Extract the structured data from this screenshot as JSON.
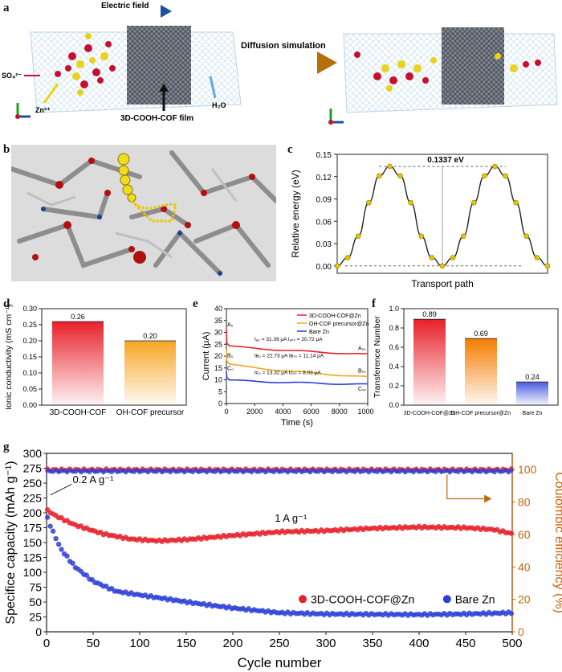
{
  "panels": {
    "a": "a",
    "b": "b",
    "c": "c",
    "d": "d",
    "e": "e",
    "f": "f",
    "g": "g"
  },
  "panel_a": {
    "electric_field": "Electric field",
    "diffusion_simulation": "Diffusion simulation",
    "so4": "SO₄²⁻",
    "zn": "Zn²⁺",
    "film": "3D-COOH-COF film",
    "h2o": "H₂O",
    "colors": {
      "arrow_blue": "#1f4fa0",
      "arrow_gold": "#c8870a",
      "sulfate": "#c8102e",
      "zinc": "#e8d21a"
    }
  },
  "panel_b": {
    "description_icons": [
      "molecular-structure-render"
    ]
  },
  "chart_data": [
    {
      "id": "c",
      "type": "line",
      "xlabel": "Transport path",
      "ylabel": "Relative energy (eV)",
      "ylim": [
        -0.01,
        0.15
      ],
      "yticks": [
        "0.00",
        "0.03",
        "0.06",
        "0.09",
        "0.12",
        "0.15"
      ],
      "annotation": "0.1337 eV",
      "barrier": 0.1337,
      "points": [
        0.0,
        0.011,
        0.04,
        0.085,
        0.121,
        0.1337,
        0.121,
        0.085,
        0.04,
        0.011,
        0.0,
        0.011,
        0.04,
        0.085,
        0.121,
        0.1337,
        0.121,
        0.085,
        0.04,
        0.011,
        0.0
      ],
      "color": "#e8c400"
    },
    {
      "id": "d",
      "type": "bar",
      "ylabel": "Ionic conductivity (mS cm⁻¹)",
      "ylim": [
        0,
        0.3
      ],
      "yticks": [
        "0.00",
        "0.05",
        "0.10",
        "0.15",
        "0.20",
        "0.25",
        "0.30"
      ],
      "categories": [
        "3D-COOH-COF",
        "OH-COF precursor"
      ],
      "values": [
        0.26,
        0.2
      ],
      "value_labels": [
        "0.26",
        "0.20"
      ],
      "colors": [
        "#e8202a",
        "#f5a623"
      ]
    },
    {
      "id": "e",
      "type": "line",
      "xlabel": "Time (s)",
      "ylabel": "Current (μA)",
      "xlim": [
        0,
        10000
      ],
      "ylim": [
        0,
        40
      ],
      "xticks": [
        "0",
        "2000",
        "4000",
        "6000",
        "8000",
        "10000"
      ],
      "yticks": [
        "0",
        "5",
        "10",
        "15",
        "20",
        "25",
        "30",
        "35",
        "40"
      ],
      "series": [
        {
          "name": "3D-COOH-COF@Zn",
          "color": "#e8202a",
          "peak": 31.39,
          "start": 24.5,
          "end": 20.72
        },
        {
          "name": "OH-COF precursor@Zn",
          "color": "#f5a623",
          "peak": 22.73,
          "start": 17.0,
          "end": 11.14
        },
        {
          "name": "Bare Zn",
          "color": "#2b3fd6",
          "peak": 13.32,
          "start": 10.0,
          "end": 8.03
        }
      ],
      "annotations": [
        "Iₐ₀ = 31.39 μA Iₐₛₛ = 20.72 μA",
        "Iʙ₀ = 22.73 μA Iʙₛₛ = 11.14 μA",
        "Iᴄ₀ = 13.32 μA Iᴄₛₛ = 8.03 μA"
      ],
      "point_labels": [
        "A₀",
        "B₀",
        "C₀",
        "Aₛₛ",
        "Bₛₛ",
        "Cₛₛ"
      ]
    },
    {
      "id": "f",
      "type": "bar",
      "ylabel": "Transference Number",
      "ylim": [
        0,
        1.0
      ],
      "yticks": [
        "0.0",
        "0.2",
        "0.4",
        "0.6",
        "0.8",
        "1.0"
      ],
      "categories": [
        "3D-COOH-COF@Zn",
        "OH-COF precursor@Zn",
        "Bare Zn"
      ],
      "values": [
        0.89,
        0.69,
        0.24
      ],
      "value_labels": [
        "0.89",
        "0.69",
        "0.24"
      ],
      "colors": [
        "#e8202a",
        "#f57c00",
        "#4a5ce0"
      ]
    },
    {
      "id": "g",
      "type": "scatter",
      "xlabel": "Cycle number",
      "ylabel_left": "Specifice capacity (mAh g⁻¹)",
      "ylabel_right": "Coulombic efficiency (%)",
      "xlim": [
        0,
        500
      ],
      "ylim_left": [
        0,
        300
      ],
      "ylim_right": [
        0,
        110
      ],
      "xticks": [
        "0",
        "50",
        "100",
        "150",
        "200",
        "250",
        "300",
        "350",
        "400",
        "450",
        "500"
      ],
      "yticks_left": [
        "0",
        "25",
        "50",
        "75",
        "100",
        "125",
        "150",
        "175",
        "200",
        "225",
        "250",
        "275",
        "300"
      ],
      "yticks_right": [
        "0",
        "20",
        "40",
        "60",
        "80",
        "100"
      ],
      "annotations": [
        "0.2 A g⁻¹",
        "1 A g⁻¹"
      ],
      "series": [
        {
          "name": "3D-COOH-COF@Zn",
          "color": "#e8202a",
          "capacity_profile": [
            [
              0,
              205
            ],
            [
              10,
              195
            ],
            [
              30,
              180
            ],
            [
              60,
              165
            ],
            [
              90,
              156
            ],
            [
              120,
              153
            ],
            [
              150,
              155
            ],
            [
              200,
              162
            ],
            [
              250,
              168
            ],
            [
              300,
              170
            ],
            [
              350,
              174
            ],
            [
              400,
              176
            ],
            [
              450,
              175
            ],
            [
              480,
              172
            ],
            [
              500,
              165
            ]
          ],
          "ce": 100
        },
        {
          "name": "Bare Zn",
          "color": "#2b3fd6",
          "capacity_profile": [
            [
              0,
              195
            ],
            [
              5,
              175
            ],
            [
              15,
              140
            ],
            [
              30,
              110
            ],
            [
              50,
              85
            ],
            [
              75,
              68
            ],
            [
              100,
              62
            ],
            [
              130,
              55
            ],
            [
              160,
              48
            ],
            [
              200,
              40
            ],
            [
              250,
              32
            ],
            [
              300,
              30
            ],
            [
              400,
              29
            ],
            [
              450,
              30
            ],
            [
              500,
              32
            ]
          ],
          "ce": 99
        }
      ]
    }
  ]
}
